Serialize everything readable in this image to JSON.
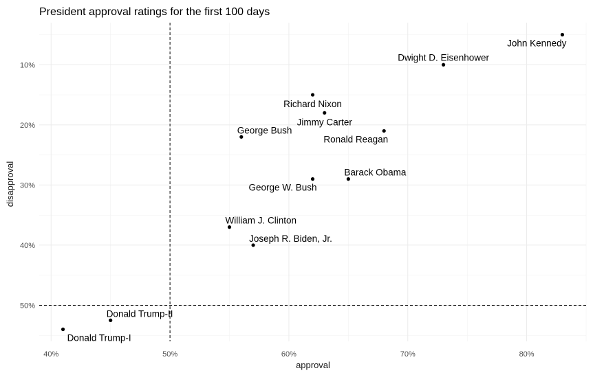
{
  "chart_data": {
    "type": "scatter",
    "title": "President approval ratings for the first 100 days",
    "xlabel": "approval",
    "ylabel": "disapproval",
    "xlim": [
      39,
      85
    ],
    "ylim": [
      3,
      56
    ],
    "y_reversed": true,
    "grid": true,
    "x_ticks": [
      {
        "value": 40,
        "label": "40%"
      },
      {
        "value": 50,
        "label": "50%"
      },
      {
        "value": 60,
        "label": "60%"
      },
      {
        "value": 70,
        "label": "70%"
      },
      {
        "value": 80,
        "label": "80%"
      }
    ],
    "y_ticks": [
      {
        "value": 10,
        "label": "10%"
      },
      {
        "value": 20,
        "label": "20%"
      },
      {
        "value": 30,
        "label": "30%"
      },
      {
        "value": 40,
        "label": "40%"
      },
      {
        "value": 50,
        "label": "50%"
      }
    ],
    "reference_lines": {
      "x": 50,
      "y": 50,
      "style": "dashed"
    },
    "points": [
      {
        "label": "John Kennedy",
        "x": 83,
        "y": 5,
        "label_pos": "below-left"
      },
      {
        "label": "Dwight D. Eisenhower",
        "x": 73,
        "y": 10,
        "label_pos": "above"
      },
      {
        "label": "Richard Nixon",
        "x": 62,
        "y": 15,
        "label_pos": "below"
      },
      {
        "label": "Jimmy Carter",
        "x": 63,
        "y": 18,
        "label_pos": "below"
      },
      {
        "label": "Ronald Reagan",
        "x": 68,
        "y": 21,
        "label_pos": "below-left"
      },
      {
        "label": "George Bush",
        "x": 56,
        "y": 22,
        "label_pos": "above-right"
      },
      {
        "label": "George W. Bush",
        "x": 62,
        "y": 29,
        "label_pos": "below-left"
      },
      {
        "label": "Barack Obama",
        "x": 65,
        "y": 29,
        "label_pos": "above-right"
      },
      {
        "label": "William J. Clinton",
        "x": 55,
        "y": 37,
        "label_pos": "above-right"
      },
      {
        "label": "Joseph R. Biden, Jr.",
        "x": 57,
        "y": 40,
        "label_pos": "above-right"
      },
      {
        "label": "Donald Trump-II",
        "x": 45,
        "y": 52.5,
        "label_pos": "above-right"
      },
      {
        "label": "Donald Trump-I",
        "x": 41,
        "y": 54,
        "label_pos": "below-right"
      }
    ]
  }
}
